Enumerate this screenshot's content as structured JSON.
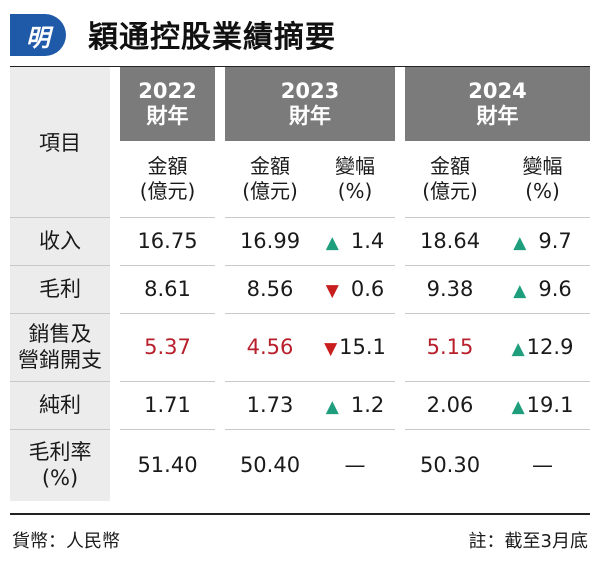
{
  "logo": {
    "text": "明"
  },
  "title": "穎通控股業績摘要",
  "colors": {
    "up": "#1f9e7e",
    "down": "#c81e1e",
    "highlight": "#b8202c",
    "header_bg": "#7b7b7b",
    "logo": "#1e5aa8"
  },
  "chart_data": {
    "type": "table",
    "title": "穎通控股業績摘要",
    "item_header": "項目",
    "years": [
      {
        "label_year": "2022",
        "label_sub": "財年",
        "columns": [
          "amount"
        ]
      },
      {
        "label_year": "2023",
        "label_sub": "財年",
        "columns": [
          "amount",
          "change"
        ]
      },
      {
        "label_year": "2024",
        "label_sub": "財年",
        "columns": [
          "amount",
          "change"
        ]
      }
    ],
    "subheaders": {
      "amount_line1": "金額",
      "amount_line2": "(億元)",
      "change_line1": "變幅",
      "change_line2": "(%)"
    },
    "rows": [
      {
        "label": [
          "收入"
        ],
        "highlight": false,
        "v2022": "16.75",
        "v2023": "16.99",
        "c2023": {
          "dir": "up",
          "value": "1.4"
        },
        "v2024": "18.64",
        "c2024": {
          "dir": "up",
          "value": "9.7"
        }
      },
      {
        "label": [
          "毛利"
        ],
        "highlight": false,
        "v2022": "8.61",
        "v2023": "8.56",
        "c2023": {
          "dir": "down",
          "value": "0.6"
        },
        "v2024": "9.38",
        "c2024": {
          "dir": "up",
          "value": "9.6"
        }
      },
      {
        "label": [
          "銷售及",
          "營銷開支"
        ],
        "highlight": true,
        "v2022": "5.37",
        "v2023": "4.56",
        "c2023": {
          "dir": "down",
          "value": "15.1"
        },
        "v2024": "5.15",
        "c2024": {
          "dir": "up",
          "value": "12.9"
        }
      },
      {
        "label": [
          "純利"
        ],
        "highlight": false,
        "v2022": "1.71",
        "v2023": "1.73",
        "c2023": {
          "dir": "up",
          "value": "1.2"
        },
        "v2024": "2.06",
        "c2024": {
          "dir": "up",
          "value": "19.1"
        }
      },
      {
        "label": [
          "毛利率",
          "(%)"
        ],
        "highlight": false,
        "v2022": "51.40",
        "v2023": "50.40",
        "c2023": {
          "dir": "none",
          "value": "—"
        },
        "v2024": "50.30",
        "c2024": {
          "dir": "none",
          "value": "—"
        }
      }
    ]
  },
  "footer": {
    "currency": "貨幣：人民幣",
    "note": "註：截至3月底"
  }
}
